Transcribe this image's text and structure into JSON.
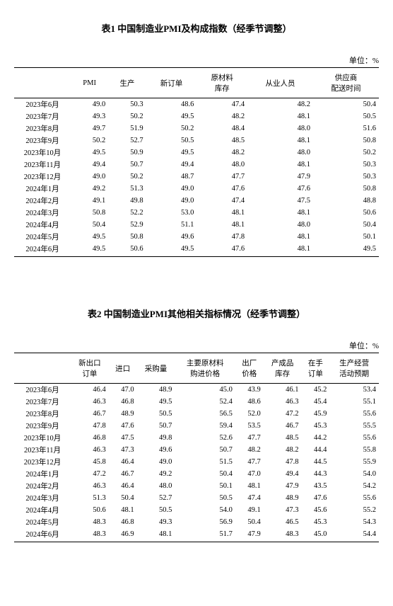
{
  "table1": {
    "title": "表1 中国制造业PMI及构成指数（经季节调整）",
    "unit": "单位：%",
    "headers": [
      "",
      "PMI",
      "生产",
      "新订单",
      "原材料\n库存",
      "从业人员",
      "供应商\n配送时间"
    ],
    "rows": [
      [
        "2023年6月",
        "49.0",
        "50.3",
        "48.6",
        "47.4",
        "48.2",
        "50.4"
      ],
      [
        "2023年7月",
        "49.3",
        "50.2",
        "49.5",
        "48.2",
        "48.1",
        "50.5"
      ],
      [
        "2023年8月",
        "49.7",
        "51.9",
        "50.2",
        "48.4",
        "48.0",
        "51.6"
      ],
      [
        "2023年9月",
        "50.2",
        "52.7",
        "50.5",
        "48.5",
        "48.1",
        "50.8"
      ],
      [
        "2023年10月",
        "49.5",
        "50.9",
        "49.5",
        "48.2",
        "48.0",
        "50.2"
      ],
      [
        "2023年11月",
        "49.4",
        "50.7",
        "49.4",
        "48.0",
        "48.1",
        "50.3"
      ],
      [
        "2023年12月",
        "49.0",
        "50.2",
        "48.7",
        "47.7",
        "47.9",
        "50.3"
      ],
      [
        "2024年1月",
        "49.2",
        "51.3",
        "49.0",
        "47.6",
        "47.6",
        "50.8"
      ],
      [
        "2024年2月",
        "49.1",
        "49.8",
        "49.0",
        "47.4",
        "47.5",
        "48.8"
      ],
      [
        "2024年3月",
        "50.8",
        "52.2",
        "53.0",
        "48.1",
        "48.1",
        "50.6"
      ],
      [
        "2024年4月",
        "50.4",
        "52.9",
        "51.1",
        "48.1",
        "48.0",
        "50.4"
      ],
      [
        "2024年5月",
        "49.5",
        "50.8",
        "49.6",
        "47.8",
        "48.1",
        "50.1"
      ],
      [
        "2024年6月",
        "49.5",
        "50.6",
        "49.5",
        "47.6",
        "48.1",
        "49.5"
      ]
    ]
  },
  "table2": {
    "title": "表2 中国制造业PMI其他相关指标情况（经季节调整）",
    "unit": "单位：%",
    "headers": [
      "",
      "新出口\n订单",
      "进口",
      "采购量",
      "主要原材料\n购进价格",
      "出厂\n价格",
      "产成品\n库存",
      "在手\n订单",
      "生产经营\n活动预期"
    ],
    "rows": [
      [
        "2023年6月",
        "46.4",
        "47.0",
        "48.9",
        "45.0",
        "43.9",
        "46.1",
        "45.2",
        "53.4"
      ],
      [
        "2023年7月",
        "46.3",
        "46.8",
        "49.5",
        "52.4",
        "48.6",
        "46.3",
        "45.4",
        "55.1"
      ],
      [
        "2023年8月",
        "46.7",
        "48.9",
        "50.5",
        "56.5",
        "52.0",
        "47.2",
        "45.9",
        "55.6"
      ],
      [
        "2023年9月",
        "47.8",
        "47.6",
        "50.7",
        "59.4",
        "53.5",
        "46.7",
        "45.3",
        "55.5"
      ],
      [
        "2023年10月",
        "46.8",
        "47.5",
        "49.8",
        "52.6",
        "47.7",
        "48.5",
        "44.2",
        "55.6"
      ],
      [
        "2023年11月",
        "46.3",
        "47.3",
        "49.6",
        "50.7",
        "48.2",
        "48.2",
        "44.4",
        "55.8"
      ],
      [
        "2023年12月",
        "45.8",
        "46.4",
        "49.0",
        "51.5",
        "47.7",
        "47.8",
        "44.5",
        "55.9"
      ],
      [
        "2024年1月",
        "47.2",
        "46.7",
        "49.2",
        "50.4",
        "47.0",
        "49.4",
        "44.3",
        "54.0"
      ],
      [
        "2024年2月",
        "46.3",
        "46.4",
        "48.0",
        "50.1",
        "48.1",
        "47.9",
        "43.5",
        "54.2"
      ],
      [
        "2024年3月",
        "51.3",
        "50.4",
        "52.7",
        "50.5",
        "47.4",
        "48.9",
        "47.6",
        "55.6"
      ],
      [
        "2024年4月",
        "50.6",
        "48.1",
        "50.5",
        "54.0",
        "49.1",
        "47.3",
        "45.6",
        "55.2"
      ],
      [
        "2024年5月",
        "48.3",
        "46.8",
        "49.3",
        "56.9",
        "50.4",
        "46.5",
        "45.3",
        "54.3"
      ],
      [
        "2024年6月",
        "48.3",
        "46.9",
        "48.1",
        "51.7",
        "47.9",
        "48.3",
        "45.0",
        "54.4"
      ]
    ]
  }
}
